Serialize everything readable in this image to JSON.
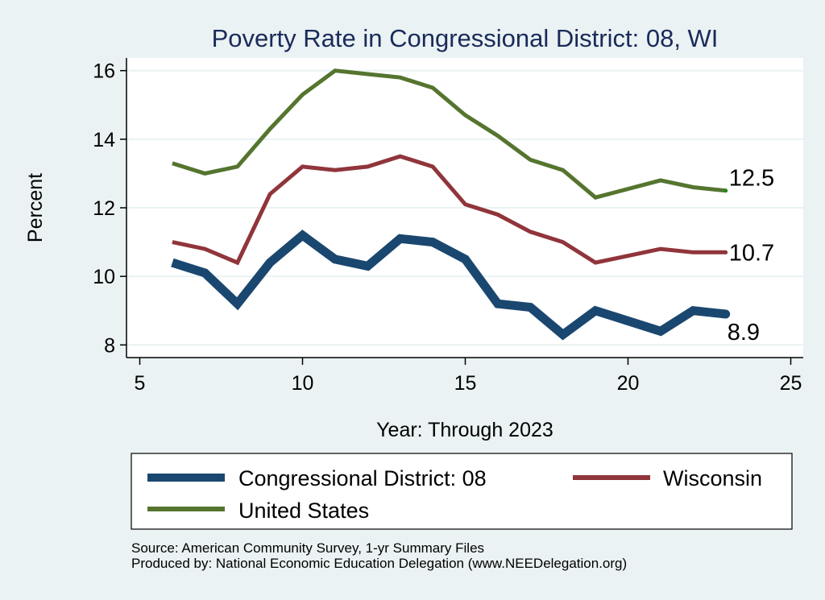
{
  "chart_data": {
    "type": "line",
    "title": "Poverty Rate in Congressional District:  08, WI",
    "xlabel": "Year: Through 2023",
    "ylabel": "Percent",
    "xlim": [
      4.5,
      25.3
    ],
    "ylim": [
      7.6,
      16.35
    ],
    "xticks": [
      5,
      10,
      15,
      20,
      25
    ],
    "yticks": [
      8,
      10,
      12,
      14,
      16
    ],
    "grid": "horizontal",
    "legend_position": "bottom",
    "series": [
      {
        "name": "Congressional District:  08",
        "color": "#1a476f",
        "weight": "thick",
        "x": [
          6,
          7,
          8,
          9,
          10,
          11,
          12,
          13,
          14,
          15,
          16,
          17,
          18,
          19,
          21,
          22,
          23
        ],
        "values": [
          10.4,
          10.1,
          9.2,
          10.4,
          11.2,
          10.5,
          10.3,
          11.1,
          11.0,
          10.5,
          9.2,
          9.1,
          8.3,
          9.0,
          8.4,
          9.0,
          8.9
        ],
        "end_label": "8.9"
      },
      {
        "name": "Wisconsin",
        "color": "#90353b",
        "weight": "medium",
        "x": [
          6,
          7,
          8,
          9,
          10,
          11,
          12,
          13,
          14,
          15,
          16,
          17,
          18,
          19,
          21,
          22,
          23
        ],
        "values": [
          11.0,
          10.8,
          10.4,
          12.4,
          13.2,
          13.1,
          13.2,
          13.5,
          13.2,
          12.1,
          11.8,
          11.3,
          11.0,
          10.4,
          10.8,
          10.7,
          10.7
        ],
        "end_label": "10.7"
      },
      {
        "name": "United States",
        "color": "#55752f",
        "weight": "medium",
        "x": [
          6,
          7,
          8,
          9,
          10,
          11,
          12,
          13,
          14,
          15,
          16,
          17,
          18,
          19,
          21,
          22,
          23
        ],
        "values": [
          13.3,
          13.0,
          13.2,
          14.3,
          15.3,
          16.0,
          15.9,
          15.8,
          15.5,
          14.7,
          14.1,
          13.4,
          13.1,
          12.3,
          12.8,
          12.6,
          12.5
        ],
        "end_label": "12.5"
      }
    ],
    "legend": [
      "Congressional District:  08",
      "Wisconsin",
      "United States"
    ],
    "notes": [
      "Source: American Community Survey, 1-yr Summary Files",
      "Produced by: National Economic Education Delegation (www.NEEDelegation.org)"
    ]
  }
}
